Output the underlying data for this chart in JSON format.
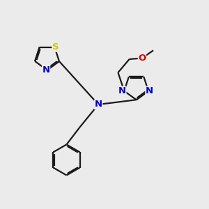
{
  "bg_color": "#ebebeb",
  "bond_color": "#1a1a1a",
  "N_color": "#0000cc",
  "S_color": "#cccc00",
  "O_color": "#dd0000",
  "line_width": 1.6,
  "font_size": 9.5,
  "figsize": [
    3.0,
    3.0
  ],
  "dpi": 100,
  "xlim": [
    0,
    10
  ],
  "ylim": [
    0,
    10
  ]
}
